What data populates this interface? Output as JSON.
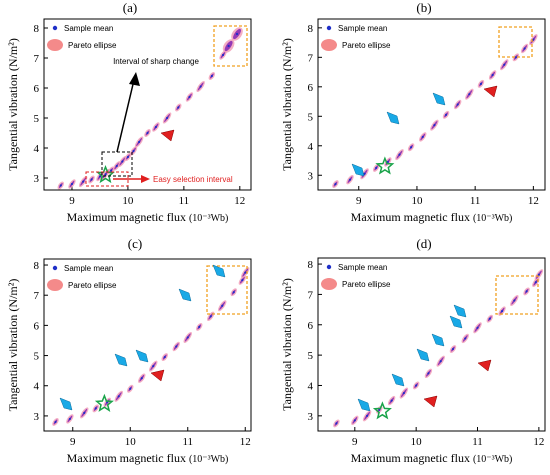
{
  "chart_data": [
    {
      "type": "scatter",
      "title": "(a)",
      "xlabel_main": "Maximum magnetic flux",
      "xlabel_unit": "(10⁻³Wb)",
      "ylabel": "Tangential vibration (N/m²)",
      "xlim": [
        8.5,
        12.2
      ],
      "ylim": [
        2.6,
        8.3
      ],
      "xticks": [
        "9",
        "10",
        "11",
        "12"
      ],
      "yticks": [
        "3",
        "4",
        "5",
        "6",
        "7",
        "8"
      ],
      "legend": {
        "position": "top-left",
        "items": [
          "Sample mean",
          "Pareto ellipse"
        ]
      },
      "annotations": [
        "Interval of sharp change",
        "Easy selection interval"
      ],
      "series": [
        {
          "points": [
            [
              8.8,
              2.75
            ],
            [
              9.0,
              2.8
            ],
            [
              9.2,
              2.88
            ],
            [
              9.35,
              2.95
            ],
            [
              9.5,
              3.05
            ],
            [
              9.6,
              3.12
            ],
            [
              9.7,
              3.25
            ],
            [
              9.8,
              3.4
            ],
            [
              9.9,
              3.55
            ],
            [
              10.0,
              3.7
            ],
            [
              10.1,
              3.9
            ],
            [
              10.2,
              4.2
            ],
            [
              10.35,
              4.5
            ],
            [
              10.5,
              4.7
            ],
            [
              10.7,
              5.0
            ],
            [
              10.9,
              5.35
            ],
            [
              11.1,
              5.7
            ],
            [
              11.3,
              6.05
            ],
            [
              11.5,
              6.4
            ],
            [
              11.7,
              7.1
            ],
            [
              11.8,
              7.4
            ],
            [
              11.95,
              7.8
            ]
          ]
        }
      ],
      "star": [
        9.6,
        3.1
      ]
    },
    {
      "type": "scatter",
      "title": "(b)",
      "xlabel_main": "Maximum magnetic flux",
      "xlabel_unit": "(10⁻³Wb)",
      "ylabel": "Tangential vibration (N/m²)",
      "xlim": [
        8.3,
        12.2
      ],
      "ylim": [
        2.5,
        8.3
      ],
      "xticks": [
        "9",
        "10",
        "11",
        "12"
      ],
      "yticks": [
        "3",
        "4",
        "5",
        "6",
        "7",
        "8"
      ],
      "legend": {
        "position": "top-left",
        "items": [
          "Sample mean",
          "Pareto ellipse"
        ]
      },
      "series": [
        {
          "points": [
            [
              8.6,
              2.7
            ],
            [
              8.85,
              2.85
            ],
            [
              9.1,
              3.05
            ],
            [
              9.3,
              3.25
            ],
            [
              9.5,
              3.45
            ],
            [
              9.7,
              3.7
            ],
            [
              9.9,
              3.95
            ],
            [
              10.1,
              4.3
            ],
            [
              10.3,
              4.7
            ],
            [
              10.5,
              5.05
            ],
            [
              10.7,
              5.4
            ],
            [
              10.9,
              5.75
            ],
            [
              11.1,
              6.1
            ],
            [
              11.3,
              6.4
            ],
            [
              11.5,
              6.75
            ],
            [
              11.7,
              7.0
            ],
            [
              11.85,
              7.3
            ],
            [
              12.0,
              7.6
            ]
          ]
        }
      ],
      "star": [
        9.45,
        3.3
      ]
    },
    {
      "type": "scatter",
      "title": "(c)",
      "xlabel_main": "Maximum magnetic flux",
      "xlabel_unit": "(10⁻³Wb)",
      "ylabel": "Tangential vibration (N/m²)",
      "xlim": [
        8.5,
        12.1
      ],
      "ylim": [
        2.5,
        8.2
      ],
      "xticks": [
        "9",
        "10",
        "11",
        "12"
      ],
      "yticks": [
        "3",
        "4",
        "5",
        "6",
        "7",
        "8"
      ],
      "legend": {
        "position": "top-left",
        "items": [
          "Sample mean",
          "Pareto ellipse"
        ]
      },
      "series": [
        {
          "points": [
            [
              8.7,
              2.8
            ],
            [
              8.95,
              2.9
            ],
            [
              9.2,
              3.1
            ],
            [
              9.4,
              3.25
            ],
            [
              9.6,
              3.45
            ],
            [
              9.8,
              3.65
            ],
            [
              10.0,
              3.9
            ],
            [
              10.2,
              4.25
            ],
            [
              10.4,
              4.65
            ],
            [
              10.6,
              4.95
            ],
            [
              10.8,
              5.3
            ],
            [
              11.0,
              5.6
            ],
            [
              11.2,
              5.95
            ],
            [
              11.4,
              6.3
            ],
            [
              11.6,
              6.65
            ],
            [
              11.8,
              7.1
            ],
            [
              11.95,
              7.5
            ],
            [
              12.0,
              7.75
            ]
          ]
        }
      ],
      "star": [
        9.55,
        3.4
      ]
    },
    {
      "type": "scatter",
      "title": "(d)",
      "xlabel_main": "Maximum magnetic flux",
      "xlabel_unit": "(10⁻³Wb)",
      "ylabel": "Tangential vibration (N/m²)",
      "xlim": [
        8.4,
        12.1
      ],
      "ylim": [
        2.5,
        8.2
      ],
      "xticks": [
        "9",
        "10",
        "11",
        "12"
      ],
      "yticks": [
        "3",
        "4",
        "5",
        "6",
        "7",
        "8"
      ],
      "legend": {
        "position": "top-left",
        "items": [
          "Sample mean",
          "Pareto ellipse"
        ]
      },
      "series": [
        {
          "points": [
            [
              8.7,
              2.75
            ],
            [
              9.0,
              2.85
            ],
            [
              9.2,
              3.0
            ],
            [
              9.4,
              3.2
            ],
            [
              9.6,
              3.5
            ],
            [
              9.8,
              3.75
            ],
            [
              10.0,
              4.0
            ],
            [
              10.2,
              4.4
            ],
            [
              10.4,
              4.8
            ],
            [
              10.6,
              5.2
            ],
            [
              10.8,
              5.55
            ],
            [
              11.0,
              5.9
            ],
            [
              11.2,
              6.2
            ],
            [
              11.4,
              6.45
            ],
            [
              11.6,
              6.8
            ],
            [
              11.8,
              7.1
            ],
            [
              11.95,
              7.4
            ],
            [
              12.0,
              7.65
            ]
          ]
        }
      ],
      "star": [
        9.45,
        3.15
      ]
    }
  ]
}
